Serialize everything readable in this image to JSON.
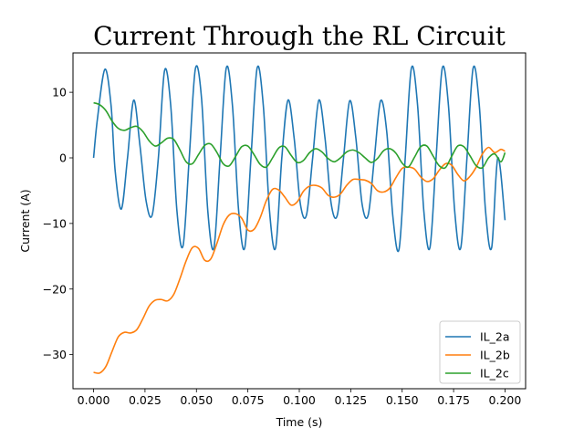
{
  "chart_data": {
    "type": "line",
    "title": "Current Through the RL Circuit",
    "xlabel": "Time (s)",
    "ylabel": "Current (A)",
    "xlim": [
      -0.01,
      0.21
    ],
    "ylim": [
      -35.2,
      16.0
    ],
    "xticks": [
      0.0,
      0.025,
      0.05,
      0.075,
      0.1,
      0.125,
      0.15,
      0.175,
      0.2
    ],
    "xtick_labels": [
      "0.000",
      "0.025",
      "0.050",
      "0.075",
      "0.100",
      "0.125",
      "0.150",
      "0.175",
      "0.200"
    ],
    "yticks": [
      -30,
      -20,
      -10,
      0,
      10
    ],
    "ytick_labels": [
      "−30",
      "−20",
      "−10",
      "0",
      "10"
    ],
    "grid": false,
    "legend_position": "lower-right",
    "series": [
      {
        "name": "IL_2a",
        "color": "#1f77b4",
        "x": [
          0.0,
          0.0019,
          0.0055,
          0.0085,
          0.0105,
          0.0135,
          0.0165,
          0.0195,
          0.0225,
          0.0255,
          0.0285,
          0.0315,
          0.0345,
          0.0375,
          0.0405,
          0.0435,
          0.0465,
          0.0495,
          0.0525,
          0.0555,
          0.0585,
          0.0615,
          0.0645,
          0.0675,
          0.0705,
          0.0735,
          0.0765,
          0.0795,
          0.0825,
          0.0855,
          0.0885,
          0.0915,
          0.0945,
          0.0975,
          0.1005,
          0.1035,
          0.1065,
          0.1095,
          0.1125,
          0.1155,
          0.1185,
          0.1215,
          0.1245,
          0.1275,
          0.1305,
          0.1335,
          0.1365,
          0.1395,
          0.1425,
          0.1455,
          0.1485,
          0.1515,
          0.1545,
          0.1575,
          0.1605,
          0.1635,
          0.1665,
          0.1695,
          0.1725,
          0.1755,
          0.1785,
          0.1815,
          0.1845,
          0.1875,
          0.1905,
          0.1935,
          0.1965,
          0.2
        ],
        "y": [
          0,
          6,
          13.5,
          8,
          -2,
          -7.8,
          0,
          8.8,
          2,
          -6.5,
          -8.7,
          0,
          13.3,
          8,
          -8,
          -13.4,
          0,
          13.6,
          9,
          -8,
          -13.7,
          0,
          13.7,
          8,
          -8,
          -13.7,
          0,
          13.7,
          8,
          -8,
          -13.7,
          0,
          8.8,
          3,
          -7,
          -8.7,
          0,
          8.8,
          3,
          -7,
          -8.7,
          0,
          8.7,
          3,
          -7,
          -8.7,
          0,
          8.7,
          4,
          -9,
          -13.9,
          0,
          13.7,
          8,
          -8,
          -13.7,
          0,
          13.7,
          8,
          -8,
          -13.7,
          0,
          13.7,
          8,
          -8,
          -13.7,
          0,
          -9.5
        ]
      },
      {
        "name": "IL_2b",
        "color": "#ff7f0e",
        "x": [
          0.0,
          0.003,
          0.006,
          0.009,
          0.012,
          0.015,
          0.018,
          0.021,
          0.024,
          0.027,
          0.03,
          0.033,
          0.036,
          0.039,
          0.042,
          0.045,
          0.048,
          0.051,
          0.054,
          0.057,
          0.06,
          0.063,
          0.066,
          0.069,
          0.072,
          0.075,
          0.078,
          0.081,
          0.084,
          0.087,
          0.09,
          0.093,
          0.096,
          0.099,
          0.102,
          0.105,
          0.108,
          0.111,
          0.114,
          0.117,
          0.12,
          0.123,
          0.126,
          0.129,
          0.132,
          0.135,
          0.138,
          0.141,
          0.144,
          0.147,
          0.15,
          0.153,
          0.156,
          0.159,
          0.162,
          0.165,
          0.168,
          0.171,
          0.174,
          0.177,
          0.18,
          0.183,
          0.186,
          0.189,
          0.192,
          0.195,
          0.198,
          0.2
        ],
        "y": [
          -32.7,
          -32.8,
          -31.8,
          -29.5,
          -27.3,
          -26.6,
          -26.7,
          -26.2,
          -24.5,
          -22.6,
          -21.7,
          -21.6,
          -21.8,
          -20.8,
          -18.4,
          -15.7,
          -13.7,
          -13.8,
          -15.6,
          -15.4,
          -13.0,
          -10.2,
          -8.7,
          -8.5,
          -9.2,
          -11.0,
          -10.9,
          -9.1,
          -6.5,
          -4.8,
          -4.9,
          -6.0,
          -7.2,
          -6.7,
          -5.1,
          -4.3,
          -4.2,
          -4.6,
          -5.7,
          -6.0,
          -5.5,
          -4.2,
          -3.3,
          -3.3,
          -3.4,
          -3.9,
          -5.0,
          -5.2,
          -4.6,
          -3.0,
          -1.6,
          -1.4,
          -1.7,
          -2.9,
          -3.6,
          -3.2,
          -1.9,
          -0.9,
          -1.1,
          -2.5,
          -3.5,
          -2.8,
          -1.4,
          0.6,
          1.6,
          0.8,
          1.3,
          1.0
        ]
      },
      {
        "name": "IL_2c",
        "color": "#2ca02c",
        "x": [
          0.0,
          0.003,
          0.006,
          0.009,
          0.012,
          0.015,
          0.018,
          0.021,
          0.024,
          0.027,
          0.03,
          0.033,
          0.036,
          0.039,
          0.042,
          0.045,
          0.048,
          0.051,
          0.054,
          0.057,
          0.06,
          0.063,
          0.066,
          0.069,
          0.072,
          0.075,
          0.078,
          0.081,
          0.084,
          0.087,
          0.09,
          0.093,
          0.096,
          0.099,
          0.102,
          0.105,
          0.108,
          0.111,
          0.114,
          0.117,
          0.12,
          0.123,
          0.126,
          0.129,
          0.132,
          0.135,
          0.138,
          0.141,
          0.144,
          0.147,
          0.15,
          0.153,
          0.156,
          0.159,
          0.162,
          0.165,
          0.168,
          0.171,
          0.174,
          0.177,
          0.18,
          0.183,
          0.186,
          0.189,
          0.192,
          0.195,
          0.198,
          0.2
        ],
        "y": [
          8.4,
          8.1,
          7.2,
          5.6,
          4.5,
          4.2,
          4.6,
          4.8,
          4.0,
          2.6,
          1.8,
          2.3,
          3.0,
          2.8,
          1.2,
          -0.6,
          -0.9,
          0.5,
          1.9,
          2.1,
          0.8,
          -0.9,
          -1.2,
          0.2,
          1.7,
          1.8,
          0.5,
          -1.0,
          -1.4,
          0.0,
          1.5,
          1.7,
          0.4,
          -0.7,
          -0.4,
          0.8,
          1.4,
          0.9,
          -0.1,
          -0.6,
          0.0,
          0.9,
          1.2,
          0.8,
          0.0,
          -0.7,
          -0.1,
          1.1,
          1.4,
          0.7,
          -0.8,
          -1.4,
          0.1,
          1.7,
          1.8,
          0.3,
          -1.2,
          -1.5,
          0.2,
          1.8,
          1.7,
          0.3,
          -1.2,
          -1.5,
          0.0,
          0.6,
          -0.6,
          0.8
        ]
      }
    ]
  }
}
